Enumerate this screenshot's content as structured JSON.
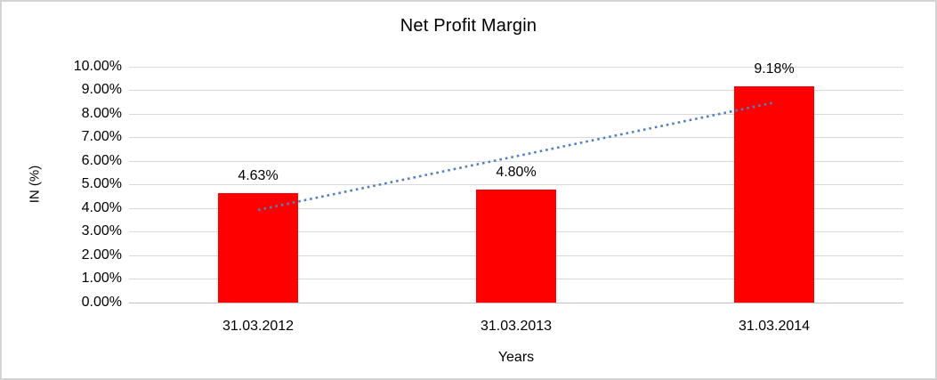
{
  "chart_data": {
    "type": "bar",
    "title": "Net Profit Margin",
    "categories": [
      "31.03.2012",
      "31.03.2013",
      "31.03.2014"
    ],
    "values": [
      4.63,
      4.8,
      9.18
    ],
    "data_labels": [
      "4.63%",
      "4.80%",
      "9.18%"
    ],
    "xlabel": "Years",
    "ylabel": "IN (%)",
    "ylim": [
      0,
      10
    ],
    "ytick_labels": [
      "0.00%",
      "1.00%",
      "2.00%",
      "3.00%",
      "4.00%",
      "5.00%",
      "6.00%",
      "7.00%",
      "8.00%",
      "9.00%",
      "10.00%"
    ],
    "grid": true,
    "legend": "none",
    "bar_color": "#ff0000",
    "trendline": {
      "type": "linear",
      "style": "dotted",
      "color": "#4f81bd",
      "start_value": 3.93,
      "end_value": 8.48
    }
  },
  "frame": {
    "background": "#ffffff",
    "border_color": "#d4d4d4",
    "gridline_color": "#d9d9d9",
    "axis_line_color": "#bfbfbf",
    "text_color": "#000000"
  }
}
